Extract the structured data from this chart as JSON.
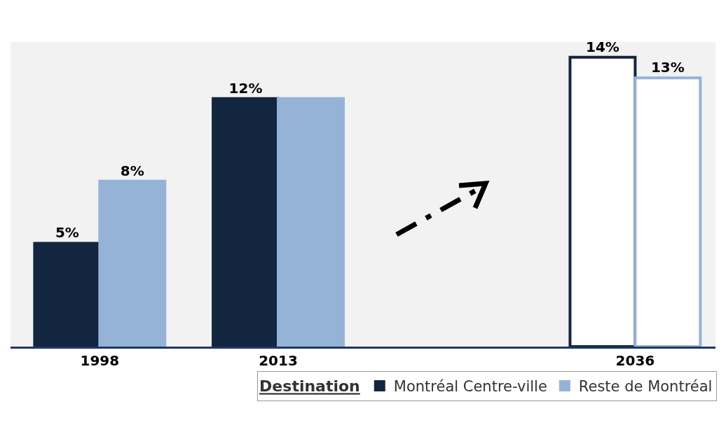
{
  "chart_data": {
    "type": "bar",
    "categories": [
      "1998",
      "2013",
      null,
      "2036"
    ],
    "series": [
      {
        "name": "Montréal Centre-ville",
        "color": "#13263f",
        "colors": [
          "#13263f",
          "#13263f",
          null,
          "#ffffff"
        ],
        "values": [
          5,
          12,
          null,
          14
        ],
        "value_labels": [
          "5%",
          "12%",
          null,
          "14%"
        ]
      },
      {
        "name": "Reste de Montréal",
        "color": "#95b3d7",
        "colors": [
          "#95b3d7",
          "#95b3d7",
          null,
          "#ffffff"
        ],
        "values": [
          8,
          12,
          null,
          13
        ],
        "value_labels": [
          "8%",
          null,
          null,
          "13%"
        ]
      }
    ],
    "legend": "bottom",
    "legend_title": "Destination"
  }
}
